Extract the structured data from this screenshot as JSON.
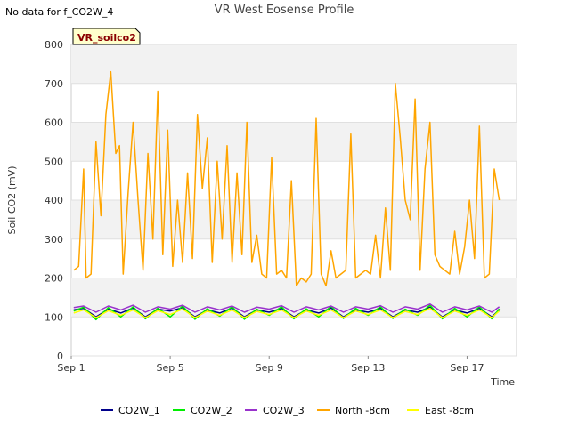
{
  "header": {
    "no_data_message": "No data for f_CO2W_4",
    "site_badge": "VR_soilco2"
  },
  "chart_data": {
    "type": "line",
    "title": "VR West Eosense Profile",
    "xlabel": "Time",
    "ylabel": "Soil CO2 (mV)",
    "ylim": [
      0,
      800
    ],
    "yticks": [
      0,
      100,
      200,
      300,
      400,
      500,
      600,
      700,
      800
    ],
    "xlim": [
      1.0,
      19.0
    ],
    "xticks": [
      {
        "value": 1,
        "label": "Sep 1"
      },
      {
        "value": 5,
        "label": "Sep 5"
      },
      {
        "value": 9,
        "label": "Sep 9"
      },
      {
        "value": 13,
        "label": "Sep 13"
      },
      {
        "value": 17,
        "label": "Sep 17"
      }
    ],
    "grid": true,
    "legend_position": "bottom",
    "series": [
      {
        "name": "CO2W_1",
        "color": "#00008b",
        "x": [
          1.1,
          1.5,
          2.0,
          2.5,
          3.0,
          3.5,
          4.0,
          4.5,
          5.0,
          5.5,
          6.0,
          6.5,
          7.0,
          7.5,
          8.0,
          8.5,
          9.0,
          9.5,
          10.0,
          10.5,
          11.0,
          11.5,
          12.0,
          12.5,
          13.0,
          13.5,
          14.0,
          14.5,
          15.0,
          15.5,
          16.0,
          16.5,
          17.0,
          17.5,
          18.0,
          18.3
        ],
        "values": [
          118,
          122,
          100,
          120,
          110,
          123,
          100,
          120,
          115,
          124,
          100,
          118,
          110,
          123,
          100,
          118,
          112,
          122,
          100,
          118,
          110,
          123,
          100,
          118,
          112,
          122,
          100,
          118,
          112,
          125,
          100,
          118,
          110,
          122,
          100,
          118
        ]
      },
      {
        "name": "CO2W_2",
        "color": "#00ee00",
        "x": [
          1.1,
          1.5,
          2.0,
          2.5,
          3.0,
          3.5,
          4.0,
          4.5,
          5.0,
          5.5,
          6.0,
          6.5,
          7.0,
          7.5,
          8.0,
          8.5,
          9.0,
          9.5,
          10.0,
          10.5,
          11.0,
          11.5,
          12.0,
          12.5,
          13.0,
          13.5,
          14.0,
          14.5,
          15.0,
          15.5,
          16.0,
          16.5,
          17.0,
          17.5,
          18.0,
          18.3
        ],
        "values": [
          115,
          125,
          93,
          124,
          100,
          126,
          95,
          122,
          100,
          128,
          94,
          121,
          102,
          126,
          94,
          120,
          104,
          126,
          95,
          121,
          100,
          127,
          96,
          122,
          104,
          126,
          96,
          120,
          104,
          130,
          95,
          122,
          100,
          126,
          95,
          121
        ]
      },
      {
        "name": "CO2W_3",
        "color": "#9932cc",
        "x": [
          1.1,
          1.5,
          2.0,
          2.5,
          3.0,
          3.5,
          4.0,
          4.5,
          5.0,
          5.5,
          6.0,
          6.5,
          7.0,
          7.5,
          8.0,
          8.5,
          9.0,
          9.5,
          10.0,
          10.5,
          11.0,
          11.5,
          12.0,
          12.5,
          13.0,
          13.5,
          14.0,
          14.5,
          15.0,
          15.5,
          16.0,
          16.5,
          17.0,
          17.5,
          18.0,
          18.3
        ],
        "values": [
          124,
          128,
          112,
          128,
          118,
          130,
          112,
          126,
          120,
          130,
          112,
          126,
          118,
          128,
          112,
          125,
          120,
          129,
          112,
          126,
          118,
          128,
          112,
          126,
          120,
          129,
          112,
          126,
          120,
          133,
          112,
          126,
          118,
          128,
          112,
          126
        ]
      },
      {
        "name": "North -8cm",
        "color": "#ffa500",
        "x": [
          1.1,
          1.3,
          1.5,
          1.6,
          1.8,
          2.0,
          2.2,
          2.4,
          2.6,
          2.8,
          2.95,
          3.1,
          3.3,
          3.5,
          3.7,
          3.9,
          4.1,
          4.3,
          4.5,
          4.7,
          4.9,
          5.1,
          5.3,
          5.5,
          5.7,
          5.9,
          6.1,
          6.3,
          6.5,
          6.7,
          6.9,
          7.1,
          7.3,
          7.5,
          7.7,
          7.9,
          8.1,
          8.3,
          8.5,
          8.7,
          8.9,
          9.1,
          9.3,
          9.5,
          9.7,
          9.9,
          10.1,
          10.3,
          10.5,
          10.7,
          10.9,
          11.1,
          11.3,
          11.5,
          11.7,
          11.9,
          12.1,
          12.3,
          12.5,
          12.7,
          12.9,
          13.1,
          13.3,
          13.5,
          13.7,
          13.9,
          14.1,
          14.3,
          14.5,
          14.7,
          14.9,
          15.1,
          15.3,
          15.5,
          15.7,
          15.9,
          16.1,
          16.3,
          16.5,
          16.7,
          16.9,
          17.1,
          17.3,
          17.5,
          17.7,
          17.9,
          18.1,
          18.3
        ],
        "values": [
          220,
          230,
          480,
          200,
          210,
          550,
          360,
          620,
          730,
          520,
          540,
          210,
          420,
          600,
          400,
          220,
          520,
          300,
          680,
          260,
          580,
          230,
          400,
          240,
          470,
          250,
          620,
          430,
          560,
          240,
          500,
          300,
          540,
          240,
          470,
          260,
          600,
          240,
          310,
          210,
          200,
          510,
          210,
          220,
          200,
          450,
          180,
          200,
          190,
          210,
          610,
          210,
          180,
          270,
          200,
          210,
          220,
          570,
          200,
          210,
          220,
          210,
          310,
          200,
          380,
          220,
          700,
          560,
          400,
          350,
          660,
          220,
          480,
          600,
          260,
          230,
          220,
          210,
          320,
          210,
          280,
          400,
          250,
          590,
          200,
          210,
          480,
          400
        ]
      },
      {
        "name": "East -8cm",
        "color": "#ffff00",
        "x": [
          1.1,
          1.5,
          2.0,
          2.5,
          3.0,
          3.5,
          4.0,
          4.5,
          5.0,
          5.5,
          6.0,
          6.5,
          7.0,
          7.5,
          8.0,
          8.5,
          9.0,
          9.5,
          10.0,
          10.5,
          11.0,
          11.5,
          12.0,
          12.5,
          13.0,
          13.5,
          14.0,
          14.5,
          15.0,
          15.5,
          16.0,
          16.5,
          17.0,
          17.5,
          18.0,
          18.3
        ],
        "values": [
          110,
          118,
          98,
          116,
          104,
          118,
          98,
          116,
          106,
          120,
          98,
          115,
          104,
          118,
          98,
          114,
          106,
          118,
          98,
          115,
          104,
          118,
          98,
          115,
          106,
          118,
          98,
          114,
          106,
          122,
          98,
          115,
          104,
          118,
          98,
          115
        ]
      }
    ]
  }
}
